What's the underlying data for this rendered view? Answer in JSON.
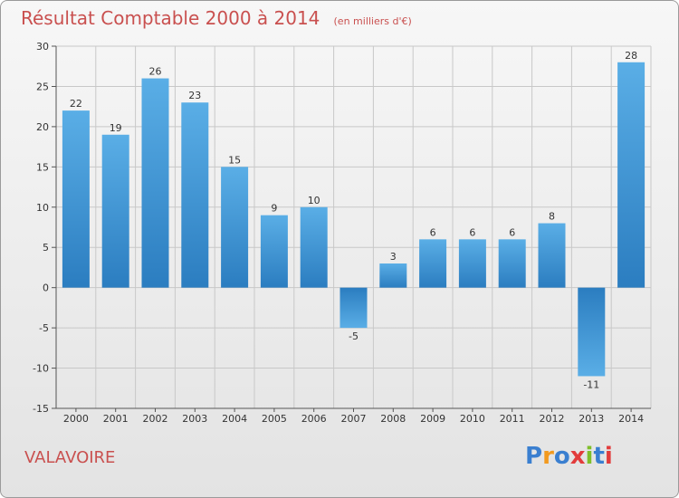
{
  "header": {
    "title": "Résultat Comptable 2000 à 2014",
    "unit": "(en milliers d'€)"
  },
  "footer": {
    "place": "VALAVOIRE",
    "brand_letters": [
      "P",
      "r",
      "o",
      "x",
      "i",
      "t",
      "i"
    ],
    "brand_colors": [
      "#3a7fd0",
      "#f29a1f",
      "#3a7fd0",
      "#e23c3c",
      "#7fbf2a",
      "#3a7fd0",
      "#e23c3c"
    ]
  },
  "colors": {
    "title": "#c9504f",
    "bar_light": "#5aaee6",
    "bar_dark": "#2b7dc0",
    "grid": "#c8c8c8"
  },
  "chart_data": {
    "type": "bar",
    "title": "Résultat Comptable 2000 à 2014",
    "subtitle": "(en milliers d'€)",
    "categories": [
      "2000",
      "2001",
      "2002",
      "2003",
      "2004",
      "2005",
      "2006",
      "2007",
      "2008",
      "2009",
      "2010",
      "2011",
      "2012",
      "2013",
      "2014"
    ],
    "values": [
      22,
      19,
      26,
      23,
      15,
      9,
      10,
      -5,
      3,
      6,
      6,
      6,
      8,
      -11,
      28
    ],
    "value_labels": [
      "22",
      "19",
      "26",
      "23",
      "15",
      "9",
      "10",
      "-5",
      "3",
      "6",
      "6",
      "6",
      "8",
      "-11",
      "28"
    ],
    "ylim": [
      -15,
      30
    ],
    "yticks": [
      30,
      25,
      20,
      15,
      10,
      5,
      0,
      -5,
      -10,
      -15
    ],
    "ytick_labels": [
      "30",
      "25",
      "20",
      "15",
      "10",
      "5",
      "0",
      "-5",
      "-10",
      "-15"
    ],
    "grid": true,
    "xlabel": "",
    "ylabel": ""
  }
}
